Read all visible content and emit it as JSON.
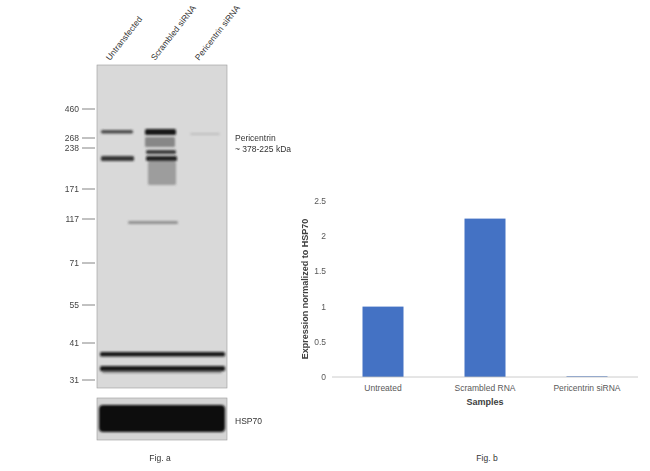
{
  "blot": {
    "lanes": [
      "Untransfected",
      "Scrambled siRNA",
      "Pericentrin siRNA"
    ],
    "markers": [
      460,
      268,
      238,
      171,
      117,
      71,
      55,
      41,
      31
    ],
    "annotations": [
      "Pericentrin",
      "~ 378-225 kDa"
    ],
    "loading_control": "HSP70",
    "caption": "Fig. a"
  },
  "chart_data": {
    "type": "bar",
    "caption": "Fig. b",
    "x_label": "Samples",
    "y_label": "Expression normalized to HSP70",
    "categories": [
      "Untreated",
      "Scrambled RNA",
      "Pericentrin siRNA"
    ],
    "values": [
      1,
      2.25,
      0.01
    ],
    "color": "#4472c4",
    "ylim": [
      0,
      2.5
    ],
    "yticks": [
      0,
      0.5,
      1,
      1.5,
      2,
      2.5
    ],
    "grid": false
  }
}
